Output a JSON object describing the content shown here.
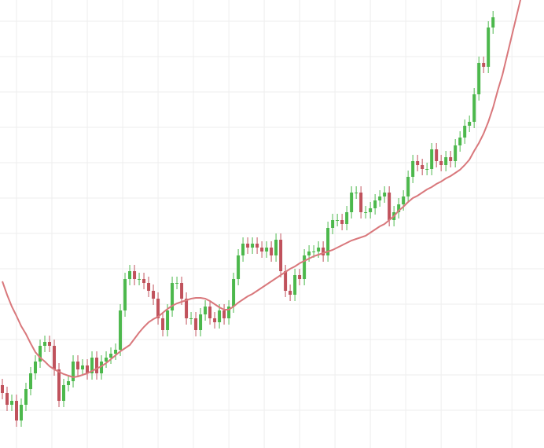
{
  "chart_data": {
    "type": "candlestick",
    "open": [
      80,
      70,
      55,
      60,
      35,
      55,
      75,
      95,
      110,
      130,
      135,
      130,
      100,
      60,
      80,
      85,
      110,
      100,
      105,
      95,
      115,
      95,
      110,
      115,
      120,
      125,
      175,
      215,
      225,
      215,
      215,
      210,
      200,
      190,
      165,
      150,
      175,
      210,
      210,
      190,
      165,
      165,
      150,
      170,
      180,
      165,
      160,
      175,
      165,
      180,
      215,
      245,
      260,
      255,
      260,
      255,
      250,
      255,
      245,
      265,
      225,
      200,
      195,
      220,
      215,
      245,
      250,
      250,
      255,
      245,
      280,
      290,
      290,
      285,
      300,
      325,
      325,
      300,
      300,
      305,
      315,
      320,
      325,
      290,
      300,
      310,
      320,
      345,
      365,
      360,
      355,
      355,
      380,
      365,
      360,
      370,
      365,
      385,
      395,
      410,
      415,
      450,
      490,
      485,
      535,
      null,
      null,
      null,
      null,
      null,
      null
    ],
    "high": [
      88,
      78,
      68,
      68,
      63,
      83,
      103,
      118,
      138,
      143,
      143,
      138,
      108,
      88,
      93,
      118,
      118,
      113,
      113,
      123,
      123,
      118,
      123,
      128,
      133,
      183,
      223,
      233,
      233,
      223,
      223,
      218,
      208,
      198,
      173,
      183,
      218,
      218,
      218,
      198,
      173,
      173,
      178,
      188,
      188,
      173,
      183,
      183,
      188,
      223,
      253,
      268,
      268,
      268,
      268,
      263,
      263,
      263,
      273,
      273,
      233,
      208,
      228,
      228,
      253,
      258,
      258,
      263,
      263,
      288,
      298,
      298,
      298,
      308,
      333,
      333,
      333,
      308,
      313,
      323,
      328,
      333,
      333,
      308,
      318,
      328,
      353,
      373,
      373,
      368,
      363,
      388,
      388,
      373,
      378,
      378,
      393,
      403,
      418,
      423,
      458,
      498,
      498,
      543,
      556,
      null,
      null,
      null,
      null,
      null,
      null
    ],
    "low": [
      62,
      47,
      47,
      27,
      27,
      47,
      67,
      87,
      102,
      122,
      122,
      92,
      52,
      52,
      72,
      77,
      92,
      92,
      87,
      87,
      87,
      87,
      102,
      107,
      112,
      117,
      167,
      207,
      207,
      207,
      202,
      192,
      182,
      157,
      142,
      142,
      167,
      202,
      182,
      157,
      157,
      142,
      142,
      162,
      157,
      152,
      152,
      157,
      157,
      172,
      207,
      237,
      247,
      247,
      247,
      242,
      242,
      237,
      237,
      217,
      192,
      187,
      187,
      207,
      207,
      237,
      242,
      242,
      237,
      237,
      272,
      282,
      277,
      277,
      292,
      317,
      292,
      292,
      292,
      297,
      307,
      312,
      282,
      282,
      292,
      302,
      312,
      337,
      352,
      347,
      347,
      347,
      357,
      352,
      352,
      357,
      357,
      377,
      387,
      402,
      407,
      442,
      477,
      477,
      527,
      null,
      null,
      null,
      null,
      null,
      null
    ],
    "close": [
      70,
      55,
      60,
      35,
      55,
      75,
      95,
      110,
      130,
      135,
      130,
      100,
      60,
      80,
      85,
      110,
      100,
      105,
      95,
      115,
      95,
      110,
      115,
      120,
      125,
      175,
      215,
      225,
      215,
      215,
      210,
      200,
      190,
      165,
      150,
      175,
      210,
      210,
      190,
      165,
      165,
      150,
      170,
      180,
      165,
      160,
      175,
      165,
      180,
      215,
      245,
      260,
      255,
      260,
      255,
      250,
      255,
      245,
      265,
      225,
      200,
      195,
      220,
      215,
      245,
      250,
      250,
      255,
      245,
      280,
      290,
      290,
      285,
      300,
      325,
      325,
      300,
      300,
      305,
      315,
      320,
      325,
      290,
      300,
      310,
      320,
      345,
      365,
      360,
      355,
      355,
      380,
      365,
      360,
      370,
      365,
      385,
      395,
      410,
      415,
      450,
      490,
      485,
      535,
      548,
      null,
      null,
      null,
      null,
      null,
      null
    ],
    "moving_average": {
      "color": "#d9787c",
      "values": [
        212,
        195,
        180,
        168,
        155,
        145,
        133,
        122,
        115,
        110,
        104,
        100,
        97,
        94,
        92,
        90,
        91,
        93,
        95,
        98,
        101,
        104,
        108,
        113,
        118,
        123,
        127,
        131,
        139,
        147,
        154,
        160,
        164,
        167,
        172,
        177,
        181,
        184,
        186,
        188,
        190,
        191,
        191,
        190,
        187,
        183,
        179,
        176,
        176,
        180,
        185,
        189,
        193,
        196,
        200,
        204,
        208,
        212,
        216,
        220,
        224,
        228,
        231,
        235,
        238,
        241,
        244,
        246,
        248,
        250,
        252,
        255,
        258,
        261,
        264,
        266,
        268,
        270,
        274,
        278,
        282,
        285,
        290,
        295,
        302,
        307,
        313,
        318,
        321,
        325,
        329,
        332,
        336,
        339,
        343,
        346,
        350,
        354,
        360,
        367,
        378,
        388,
        400,
        415,
        433,
        455,
        475,
        500,
        525,
        550,
        575
      ]
    },
    "up_color": "#4cb84c",
    "down_color": "#c0525c",
    "xlim": [
      -0.5,
      114.8
    ],
    "ylim": [
      0,
      570
    ],
    "xticks": [
      3,
      10.5,
      18,
      25.5,
      33,
      40.5,
      48,
      55.5,
      63,
      70.5,
      78,
      85.5,
      93,
      100.5,
      108
    ],
    "yticks": [
      48,
      93,
      138,
      183,
      228,
      273,
      318,
      363,
      408,
      453,
      498,
      543
    ],
    "grid": true
  }
}
